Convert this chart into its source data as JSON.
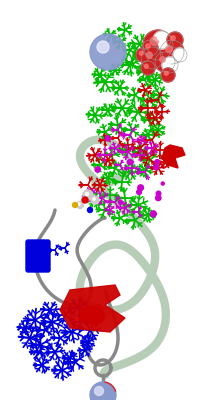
{
  "background_color": "#ffffff",
  "figsize": [
    2.13,
    4.0
  ],
  "dpi": 100,
  "colors": {
    "blue": "#0000dd",
    "green": "#00bb00",
    "red": "#cc0000",
    "magenta": "#cc00cc",
    "gray": "#888888",
    "light_green_ribbon": "#b0c8b0",
    "sphere_blue": "#8899cc",
    "sphere_highlight": "#dde0f0",
    "red_sphere": "#cc2222",
    "white_sphere": "#f0f0f0",
    "dark_red": "#aa0000"
  },
  "ribbon_color": "#b0c8b0",
  "gray_coil_color": "#888888"
}
